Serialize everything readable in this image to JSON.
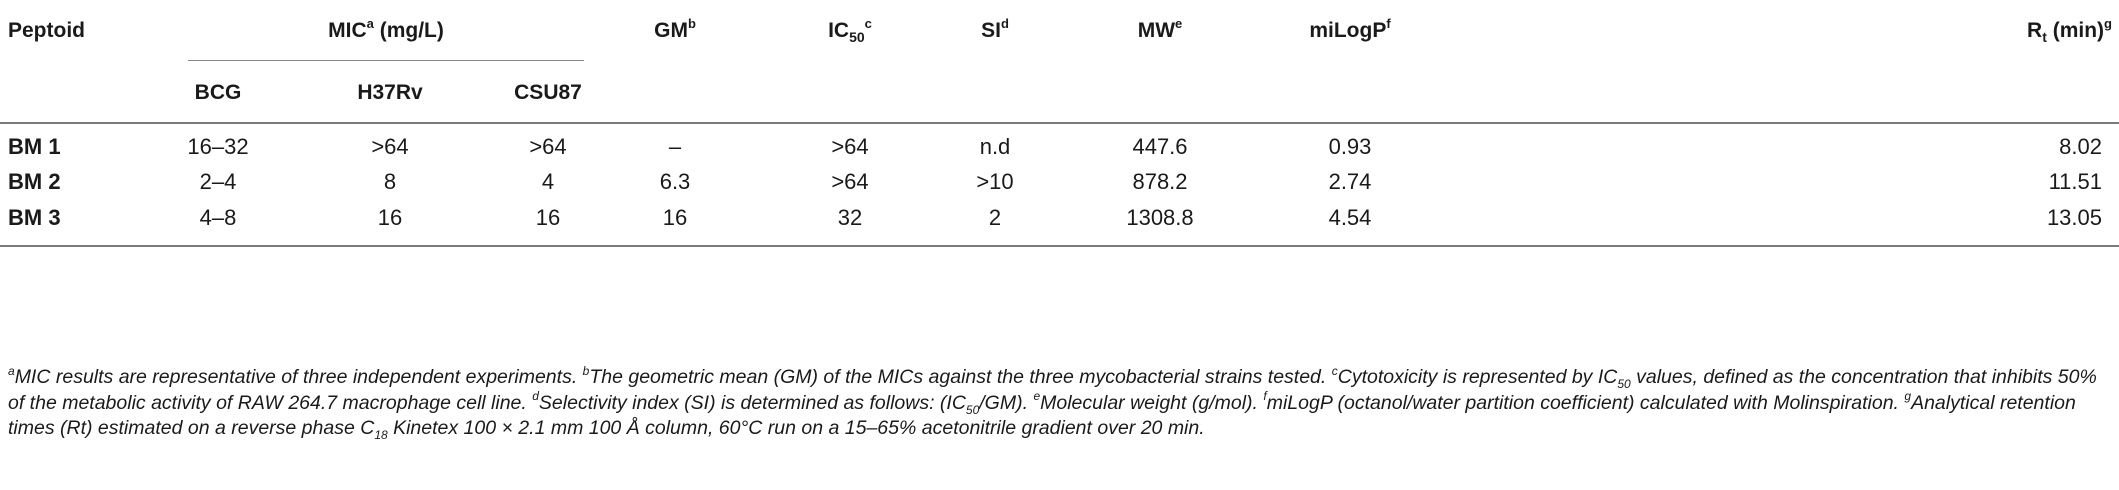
{
  "headers": {
    "peptoid": "Peptoid",
    "mic": "MIC",
    "mic_sup": "a",
    "mic_unit": " (mg/L)",
    "gm": "GM",
    "gm_sup": "b",
    "ic50_main": "IC",
    "ic50_sub": "50",
    "ic50_sup": "c",
    "si": "SI",
    "si_sup": "d",
    "mw": "MW",
    "mw_sup": "e",
    "milogp": "miLogP",
    "milogp_sup": "f",
    "rt_main": "R",
    "rt_sub": "t",
    "rt_unit": " (min)",
    "rt_sup": "g",
    "bcg": "BCG",
    "h37rv": "H37Rv",
    "csu87": "CSU87"
  },
  "rows": [
    {
      "name": "BM 1",
      "bcg": "16–32",
      "h37rv": ">64",
      "csu87": ">64",
      "gm": "–",
      "ic50": ">64",
      "si": "n.d",
      "mw": "447.6",
      "milogp": "0.93",
      "rt": "8.02"
    },
    {
      "name": "BM 2",
      "bcg": "2–4",
      "h37rv": "8",
      "csu87": "4",
      "gm": "6.3",
      "ic50": ">64",
      "si": ">10",
      "mw": "878.2",
      "milogp": "2.74",
      "rt": "11.51"
    },
    {
      "name": "BM 3",
      "bcg": "4–8",
      "h37rv": "16",
      "csu87": "16",
      "gm": "16",
      "ic50": "32",
      "si": "2",
      "mw": "1308.8",
      "milogp": "4.54",
      "rt": "13.05"
    }
  ],
  "footnotes": {
    "a_mark": "a",
    "a_text": "MIC results are representative of three independent experiments. ",
    "b_mark": "b",
    "b_text": "The geometric mean (GM) of the MICs against the three mycobacterial strains tested. ",
    "c_mark": "c",
    "c_text1": "Cytotoxicity is represented by IC",
    "c_sub": "50",
    "c_text2": " values, defined as the concentration that inhibits 50% of the metabolic activity of RAW 264.7 macrophage cell line. ",
    "d_mark": "d",
    "d_text1": "Selectivity index (SI) is determined as follows: (IC",
    "d_sub": "50",
    "d_text2": "/GM). ",
    "e_mark": "e",
    "e_text": "Molecular weight (g/mol). ",
    "f_mark": "f",
    "f_text": "miLogP (octanol/water partition coefficient) calculated with Molinspiration. ",
    "g_mark": "g",
    "g_text1": "Analytical retention times (Rt) estimated on a reverse phase C",
    "g_sub": "18",
    "g_text2": " Kinetex 100 × 2.1 mm 100 Å column, 60°C run on a 15–65% acetonitrile gradient over 20 min."
  }
}
